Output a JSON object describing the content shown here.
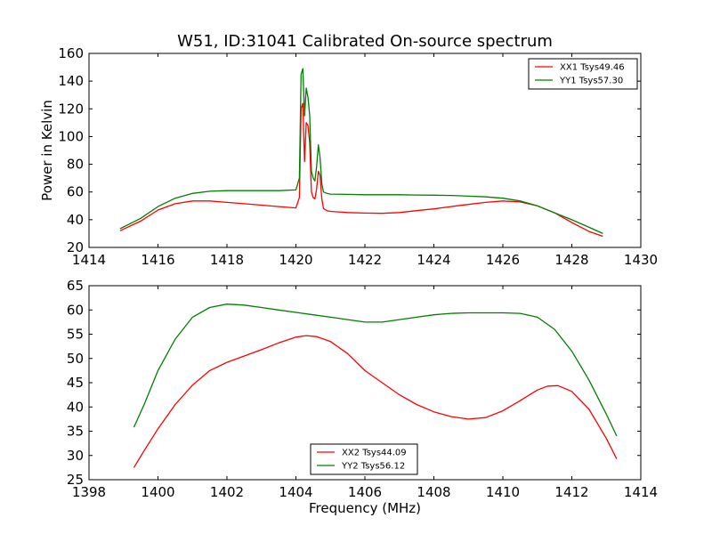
{
  "title": "W51, ID:31041 Calibrated On-source spectrum",
  "chart_data": [
    {
      "type": "line",
      "xlabel": "",
      "ylabel": "Power in Kelvin",
      "xlim": [
        1414,
        1430
      ],
      "ylim": [
        20,
        160
      ],
      "xticks": [
        1414,
        1416,
        1418,
        1420,
        1422,
        1424,
        1426,
        1428,
        1430
      ],
      "yticks": [
        20,
        40,
        60,
        80,
        100,
        120,
        140,
        160
      ],
      "legend": "top-right",
      "grid": false,
      "series": [
        {
          "name": "XX1 Tsys49.46",
          "color": "#ff0000",
          "x": [
            1414.9,
            1415.5,
            1416.0,
            1416.5,
            1417.0,
            1417.5,
            1418.0,
            1418.5,
            1419.0,
            1419.5,
            1420.0,
            1420.1,
            1420.15,
            1420.2,
            1420.25,
            1420.3,
            1420.35,
            1420.4,
            1420.45,
            1420.5,
            1420.55,
            1420.6,
            1420.65,
            1420.7,
            1420.75,
            1420.8,
            1420.9,
            1421.0,
            1421.5,
            1422.0,
            1422.5,
            1423.0,
            1423.5,
            1424.0,
            1424.5,
            1425.0,
            1425.5,
            1426.0,
            1426.5,
            1427.0,
            1427.5,
            1428.0,
            1428.5,
            1428.9
          ],
          "y": [
            32,
            39,
            47,
            51.5,
            53.5,
            53.5,
            52.5,
            51.5,
            50.5,
            49.5,
            48.5,
            56,
            120,
            124,
            82,
            110,
            108,
            95,
            60,
            56,
            55,
            62,
            75,
            72,
            55,
            48,
            46.5,
            46,
            45.2,
            44.8,
            44.6,
            45.2,
            46.5,
            47.8,
            49.5,
            51,
            52.5,
            53.5,
            52.8,
            50,
            45,
            38,
            31.5,
            28
          ]
        },
        {
          "name": "YY1 Tsys57.30",
          "color": "#007f00",
          "x": [
            1414.9,
            1415.5,
            1416.0,
            1416.5,
            1417.0,
            1417.5,
            1418.0,
            1418.5,
            1419.0,
            1419.5,
            1420.0,
            1420.1,
            1420.15,
            1420.2,
            1420.25,
            1420.3,
            1420.35,
            1420.4,
            1420.45,
            1420.5,
            1420.55,
            1420.6,
            1420.65,
            1420.7,
            1420.75,
            1420.8,
            1420.9,
            1421.0,
            1421.5,
            1422.0,
            1422.5,
            1423.0,
            1423.5,
            1424.0,
            1424.5,
            1425.0,
            1425.5,
            1426.0,
            1426.5,
            1427.0,
            1427.5,
            1428.0,
            1428.5,
            1428.9
          ],
          "y": [
            33.5,
            41,
            49.5,
            55.5,
            59,
            60.5,
            61,
            61,
            61,
            61,
            61.5,
            70,
            145,
            149,
            115,
            135,
            128,
            115,
            75,
            70,
            68,
            78,
            94,
            85,
            66,
            60,
            59,
            58.5,
            58.3,
            58,
            58,
            58,
            57.8,
            57.7,
            57.5,
            57,
            56.5,
            55.5,
            53.5,
            50,
            45,
            40,
            34.5,
            30
          ]
        }
      ]
    },
    {
      "type": "line",
      "xlabel": "Frequency (MHz)",
      "ylabel": "",
      "xlim": [
        1398,
        1414
      ],
      "ylim": [
        25,
        65
      ],
      "xticks": [
        1398,
        1400,
        1402,
        1404,
        1406,
        1408,
        1410,
        1412,
        1414
      ],
      "yticks": [
        25,
        30,
        35,
        40,
        45,
        50,
        55,
        60,
        65
      ],
      "legend": "bottom-center",
      "grid": false,
      "series": [
        {
          "name": "XX2 Tsys44.09",
          "color": "#ff0000",
          "x": [
            1399.3,
            1399.6,
            1400.0,
            1400.5,
            1401.0,
            1401.5,
            1402.0,
            1402.5,
            1403.0,
            1403.5,
            1404.0,
            1404.3,
            1404.6,
            1405.0,
            1405.5,
            1406.0,
            1406.5,
            1407.0,
            1407.5,
            1408.0,
            1408.5,
            1409.0,
            1409.5,
            1410.0,
            1410.5,
            1411.0,
            1411.3,
            1411.6,
            1412.0,
            1412.5,
            1413.0,
            1413.3
          ],
          "y": [
            27.5,
            31,
            35.5,
            40.5,
            44.5,
            47.5,
            49.2,
            50.5,
            51.8,
            53.2,
            54.4,
            54.7,
            54.5,
            53.5,
            51,
            47.5,
            45,
            42.5,
            40.5,
            39,
            38,
            37.5,
            37.8,
            39.2,
            41.3,
            43.5,
            44.3,
            44.4,
            43.2,
            39.5,
            33.5,
            29.3
          ]
        },
        {
          "name": "YY2 Tsys56.12",
          "color": "#007f00",
          "x": [
            1399.3,
            1399.6,
            1400.0,
            1400.5,
            1401.0,
            1401.5,
            1402.0,
            1402.5,
            1403.0,
            1403.5,
            1404.0,
            1404.5,
            1405.0,
            1405.5,
            1406.0,
            1406.5,
            1407.0,
            1407.5,
            1408.0,
            1408.5,
            1409.0,
            1409.5,
            1410.0,
            1410.5,
            1411.0,
            1411.5,
            1412.0,
            1412.5,
            1413.0,
            1413.3
          ],
          "y": [
            35.8,
            40.5,
            47.5,
            54,
            58.5,
            60.5,
            61.2,
            61,
            60.5,
            60,
            59.5,
            59,
            58.5,
            58,
            57.5,
            57.5,
            58,
            58.5,
            59,
            59.3,
            59.4,
            59.4,
            59.4,
            59.3,
            58.5,
            56,
            51.5,
            45.5,
            38.5,
            34
          ]
        }
      ]
    }
  ]
}
